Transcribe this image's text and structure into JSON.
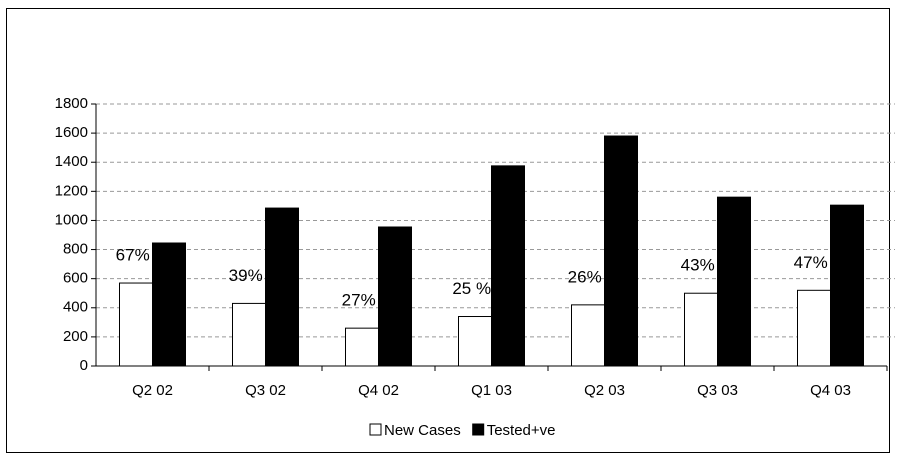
{
  "chart_data": {
    "type": "bar",
    "categories": [
      "Q2 02",
      "Q3 02",
      "Q4 02",
      "Q1 03",
      "Q2 03",
      "Q3 03",
      "Q4 03"
    ],
    "series": [
      {
        "name": "New Cases",
        "color": "#ffffff",
        "values": [
          570,
          430,
          260,
          340,
          420,
          500,
          520
        ]
      },
      {
        "name": "Tested+ve",
        "color": "#000000",
        "values": [
          845,
          1085,
          955,
          1375,
          1580,
          1160,
          1105
        ]
      }
    ],
    "annotations": [
      "67%",
      "39%",
      "27%",
      "25 %",
      "26%",
      "43%",
      "47%"
    ],
    "ylim": [
      0,
      1800
    ],
    "yticks": [
      0,
      200,
      400,
      600,
      800,
      1000,
      1200,
      1400,
      1600,
      1800
    ],
    "grid": true,
    "legend": "bottom"
  }
}
